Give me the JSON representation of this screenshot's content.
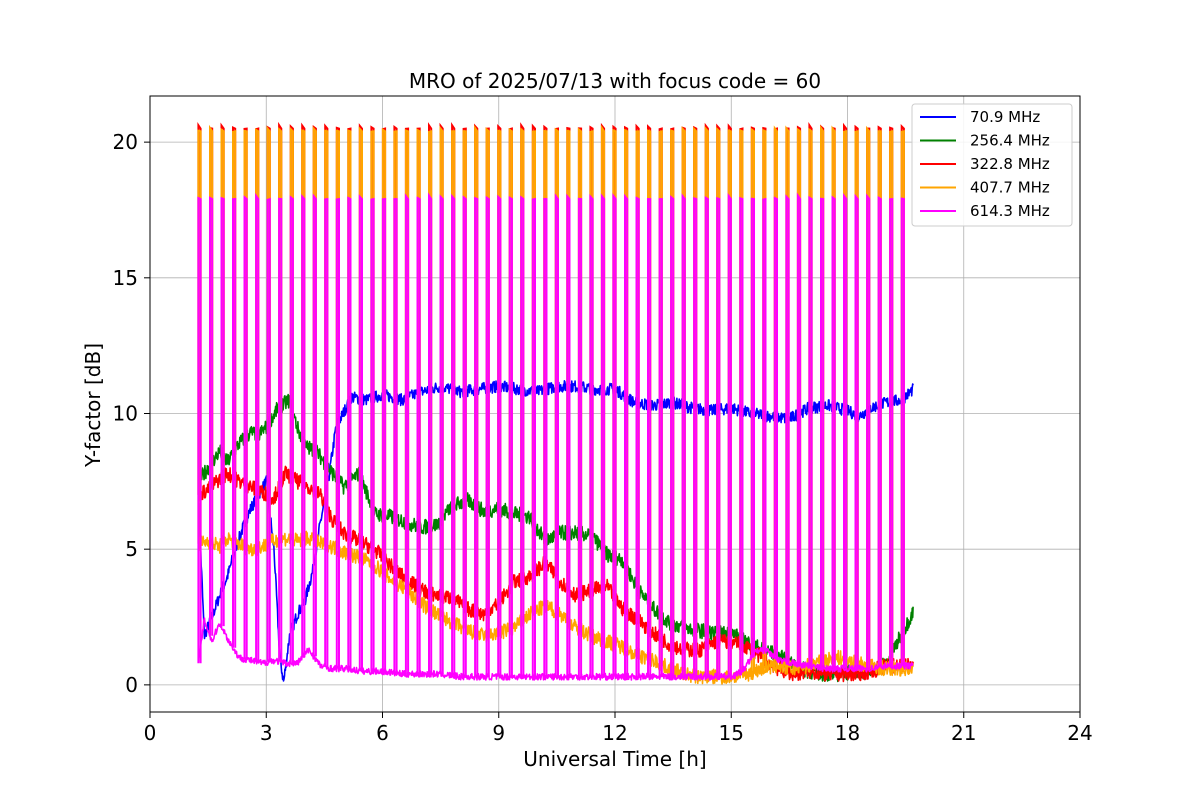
{
  "chart_data": {
    "type": "line",
    "title": "MRO of 2025/07/13 with focus code = 60",
    "xlabel": "Universal Time [h]",
    "ylabel": "Y-factor [dB]",
    "xlim": [
      0,
      24
    ],
    "ylim": [
      -1.0,
      21.7
    ],
    "xticks": [
      0,
      3,
      6,
      9,
      12,
      15,
      18,
      21,
      24
    ],
    "xtick_labels": [
      "0",
      "3",
      "6",
      "9",
      "12",
      "15",
      "18",
      "21",
      "24"
    ],
    "yticks": [
      0,
      5,
      10,
      15,
      20
    ],
    "ytick_labels": [
      "0",
      "5",
      "10",
      "15",
      "20"
    ],
    "grid": true,
    "legend_position": "top-right",
    "series": [
      {
        "name": " 70.9 MHz",
        "color": "#0000ff",
        "x": [
          1.25,
          1.4,
          1.6,
          1.8,
          2.0,
          2.2,
          2.4,
          2.6,
          2.8,
          3.0,
          3.2,
          3.35,
          3.45,
          3.6,
          3.8,
          4.0,
          4.2,
          4.4,
          4.6,
          4.8,
          5.2,
          5.6,
          6.0,
          6.5,
          7.0,
          7.5,
          8.0,
          8.5,
          9.0,
          9.5,
          10.0,
          10.5,
          11.0,
          11.5,
          12.0,
          12.5,
          13.0,
          13.5,
          14.0,
          14.5,
          15.0,
          15.5,
          16.0,
          16.5,
          17.0,
          17.5,
          18.0,
          18.3,
          18.6,
          19.0,
          19.4,
          19.7
        ],
        "y": [
          6.9,
          1.8,
          2.5,
          3.3,
          4.0,
          5.0,
          5.8,
          6.5,
          7.0,
          7.5,
          5.0,
          1.0,
          0.1,
          1.8,
          2.6,
          3.1,
          4.2,
          6.0,
          7.5,
          9.5,
          10.6,
          10.5,
          10.7,
          10.5,
          10.8,
          11.0,
          10.8,
          10.9,
          11.0,
          10.9,
          10.8,
          11.0,
          11.0,
          10.9,
          10.9,
          10.4,
          10.3,
          10.4,
          10.2,
          10.1,
          10.2,
          10.0,
          9.9,
          9.8,
          10.2,
          10.3,
          10.1,
          9.9,
          10.2,
          10.4,
          10.5,
          10.9
        ]
      },
      {
        "name": "256.4 MHz",
        "color": "#008000",
        "x": [
          1.25,
          1.5,
          1.8,
          2.0,
          2.3,
          2.6,
          2.8,
          3.0,
          3.3,
          3.6,
          3.8,
          4.0,
          4.3,
          4.6,
          5.0,
          5.4,
          5.8,
          6.2,
          6.6,
          7.0,
          7.4,
          7.8,
          8.2,
          8.6,
          9.0,
          9.4,
          9.8,
          10.2,
          10.6,
          11.0,
          11.4,
          11.8,
          12.2,
          12.6,
          13.0,
          13.4,
          13.8,
          14.2,
          14.6,
          15.0,
          15.4,
          15.8,
          16.2,
          16.6,
          17.0,
          17.4,
          17.8,
          18.2,
          18.6,
          19.0,
          19.3,
          19.7
        ],
        "y": [
          7.5,
          8.0,
          8.6,
          8.2,
          8.9,
          9.3,
          9.2,
          9.5,
          10.2,
          10.5,
          9.5,
          8.8,
          8.6,
          8.0,
          7.3,
          7.8,
          6.3,
          6.2,
          6.0,
          5.8,
          5.9,
          6.6,
          6.8,
          6.4,
          6.5,
          6.3,
          6.2,
          5.3,
          5.6,
          5.6,
          5.5,
          4.8,
          4.6,
          3.5,
          2.8,
          2.3,
          2.1,
          2.0,
          1.9,
          1.9,
          1.6,
          1.3,
          1.1,
          0.7,
          0.5,
          0.4,
          0.4,
          0.5,
          0.5,
          0.8,
          1.6,
          2.7
        ]
      },
      {
        "name": "322.8 MHz",
        "color": "#ff0000",
        "x": [
          1.25,
          1.5,
          1.8,
          2.0,
          2.3,
          2.6,
          2.9,
          3.2,
          3.5,
          3.8,
          4.1,
          4.4,
          4.7,
          5.0,
          5.4,
          5.8,
          6.2,
          6.6,
          7.0,
          7.4,
          7.8,
          8.2,
          8.6,
          9.0,
          9.4,
          9.8,
          10.2,
          10.6,
          11.0,
          11.4,
          11.8,
          12.2,
          12.6,
          13.0,
          13.4,
          13.8,
          14.2,
          14.6,
          15.0,
          15.4,
          15.8,
          16.2,
          16.6,
          17.0,
          17.4,
          17.8,
          18.2,
          18.6,
          19.0,
          19.4,
          19.7
        ],
        "y": [
          7.0,
          7.2,
          7.6,
          7.8,
          7.5,
          7.3,
          7.1,
          6.9,
          7.8,
          7.5,
          7.3,
          7.0,
          6.1,
          5.6,
          5.3,
          5.0,
          4.4,
          3.9,
          3.5,
          3.3,
          3.2,
          2.8,
          2.6,
          3.0,
          3.8,
          4.0,
          4.5,
          3.8,
          3.3,
          3.5,
          3.6,
          2.8,
          2.4,
          1.9,
          1.5,
          1.3,
          1.3,
          1.6,
          1.6,
          1.4,
          1.0,
          0.6,
          0.4,
          0.5,
          0.4,
          0.4,
          0.4,
          0.5,
          0.7,
          0.7,
          0.7
        ]
      },
      {
        "name": "407.7 MHz",
        "color": "#ffa500",
        "x": [
          1.25,
          1.5,
          1.8,
          2.0,
          2.3,
          2.6,
          2.9,
          3.2,
          3.5,
          3.8,
          4.1,
          4.4,
          4.7,
          5.0,
          5.4,
          5.8,
          6.2,
          6.6,
          7.0,
          7.4,
          7.8,
          8.2,
          8.6,
          9.0,
          9.4,
          9.8,
          10.2,
          10.6,
          11.0,
          11.4,
          11.8,
          12.2,
          12.6,
          13.0,
          13.4,
          13.8,
          14.2,
          14.6,
          15.0,
          15.4,
          15.8,
          16.2,
          16.6,
          17.0,
          17.4,
          17.8,
          18.2,
          18.6,
          19.0,
          19.4,
          19.7
        ],
        "y": [
          5.2,
          5.3,
          5.1,
          5.4,
          5.2,
          5.0,
          5.1,
          5.3,
          5.4,
          5.3,
          5.4,
          5.2,
          5.1,
          4.9,
          4.7,
          4.4,
          3.9,
          3.5,
          3.0,
          2.6,
          2.3,
          2.0,
          1.8,
          1.9,
          2.1,
          2.6,
          2.9,
          2.6,
          2.1,
          1.8,
          1.6,
          1.4,
          1.1,
          0.9,
          0.6,
          0.4,
          0.3,
          0.3,
          0.3,
          0.4,
          0.6,
          0.7,
          0.6,
          0.7,
          0.9,
          1.0,
          0.8,
          0.7,
          0.6,
          0.6,
          0.6
        ]
      },
      {
        "name": "614.3 MHz",
        "color": "#ff00ff",
        "x": [
          1.25,
          1.4,
          1.6,
          1.8,
          2.0,
          2.3,
          2.6,
          2.9,
          3.2,
          3.5,
          3.8,
          4.1,
          4.4,
          4.7,
          5.0,
          5.5,
          6.0,
          6.5,
          7.0,
          7.5,
          8.0,
          8.5,
          9.0,
          9.5,
          10.0,
          10.5,
          11.0,
          11.5,
          12.0,
          12.5,
          13.0,
          13.5,
          14.0,
          14.5,
          15.0,
          15.3,
          15.6,
          15.9,
          16.2,
          16.6,
          17.0,
          17.4,
          17.8,
          18.2,
          18.6,
          19.0,
          19.4,
          19.7
        ],
        "y": [
          0.8,
          2.4,
          1.6,
          2.3,
          1.7,
          1.0,
          0.9,
          0.8,
          0.9,
          0.8,
          0.8,
          1.3,
          0.7,
          0.6,
          0.6,
          0.5,
          0.5,
          0.4,
          0.4,
          0.4,
          0.3,
          0.3,
          0.3,
          0.3,
          0.3,
          0.3,
          0.3,
          0.3,
          0.3,
          0.3,
          0.3,
          0.3,
          0.3,
          0.3,
          0.3,
          0.5,
          1.2,
          1.3,
          0.9,
          0.8,
          0.7,
          0.6,
          0.6,
          0.6,
          0.6,
          0.7,
          0.7,
          0.7
        ]
      }
    ],
    "calibration_spikes": {
      "description_hidden": "",
      "start": 1.25,
      "end": 19.5,
      "interval": 0.2975,
      "peaks": [
        {
          "series": "322.8 MHz",
          "value": 20.6
        },
        {
          "series": "407.7 MHz",
          "value": 20.5
        },
        {
          "series": "614.3 MHz",
          "value": 18.0
        }
      ]
    }
  }
}
